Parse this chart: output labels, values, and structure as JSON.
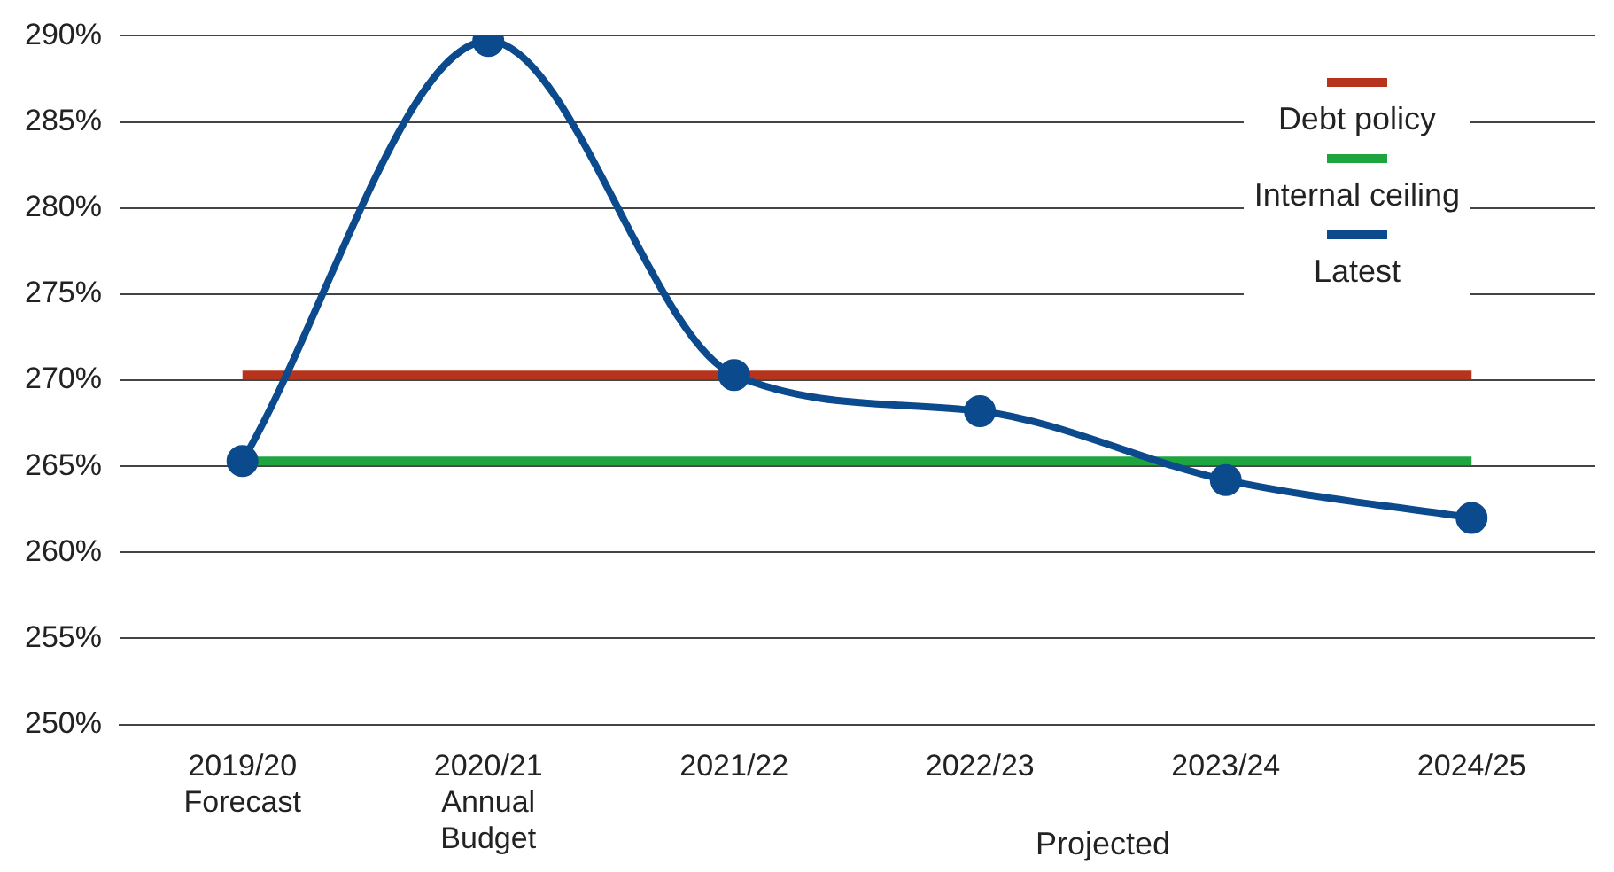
{
  "chart_data": {
    "type": "line",
    "categories": [
      "2019/20\nForecast",
      "2020/21\nAnnual\nBudget",
      "2021/22",
      "2022/23",
      "2023/24",
      "2024/25"
    ],
    "series": [
      {
        "name": "Debt policy",
        "color": "#b7341c",
        "values": [
          270.3,
          270.3,
          270.3,
          270.3,
          270.3,
          270.3
        ],
        "marker": "none"
      },
      {
        "name": "Internal ceiling",
        "color": "#1fa53f",
        "values": [
          265.3,
          265.3,
          265.3,
          265.3,
          265.3,
          265.3
        ],
        "marker": "none"
      },
      {
        "name": "Latest",
        "color": "#0b4a8c",
        "values": [
          265.3,
          289.7,
          270.3,
          268.2,
          264.2,
          262.0
        ],
        "marker": "circle"
      }
    ],
    "ylim": [
      250,
      290
    ],
    "yticks": [
      {
        "value": 250,
        "label": "250%"
      },
      {
        "value": 255,
        "label": "255%"
      },
      {
        "value": 260,
        "label": "260%"
      },
      {
        "value": 265,
        "label": "265%"
      },
      {
        "value": 270,
        "label": "270%"
      },
      {
        "value": 275,
        "label": "275%"
      },
      {
        "value": 280,
        "label": "280%"
      },
      {
        "value": 285,
        "label": "285%"
      },
      {
        "value": 290,
        "label": "290%"
      }
    ],
    "grid": "y",
    "legend": "top right",
    "annotations": [
      "Projected"
    ]
  }
}
